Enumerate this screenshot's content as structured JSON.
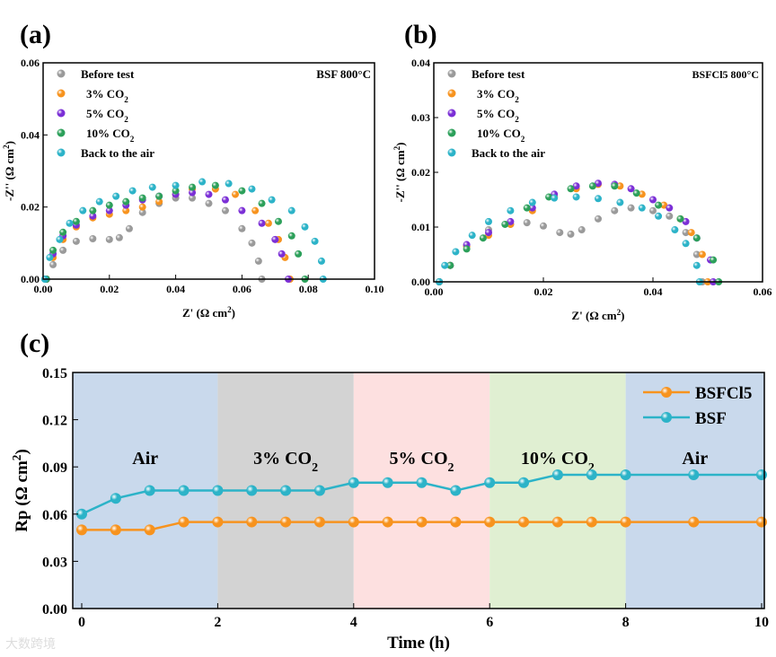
{
  "watermark": "大数跨境",
  "chart_data": [
    {
      "panel": "(a)",
      "type": "scatter",
      "title": "BSF 800°C",
      "xlabel": "Z' (Ω cm²)",
      "ylabel": "-Z'' (Ω cm²)",
      "xlim": [
        0,
        0.1
      ],
      "ylim": [
        0,
        0.06
      ],
      "xticks": [
        "0.00",
        "0.02",
        "0.04",
        "0.06",
        "0.08",
        "0.10"
      ],
      "yticks": [
        "0.00",
        "0.02",
        "0.04",
        "0.06"
      ],
      "legend_position": "top-left",
      "series": [
        {
          "name": "Before test",
          "color": "#9a9a9a",
          "points": [
            [
              0.001,
              0
            ],
            [
              0.003,
              0.004
            ],
            [
              0.006,
              0.008
            ],
            [
              0.01,
              0.0105
            ],
            [
              0.015,
              0.0112
            ],
            [
              0.02,
              0.011
            ],
            [
              0.023,
              0.0115
            ],
            [
              0.026,
              0.014
            ],
            [
              0.03,
              0.0185
            ],
            [
              0.035,
              0.021
            ],
            [
              0.04,
              0.0225
            ],
            [
              0.045,
              0.0225
            ],
            [
              0.05,
              0.021
            ],
            [
              0.055,
              0.019
            ],
            [
              0.06,
              0.014
            ],
            [
              0.063,
              0.01
            ],
            [
              0.065,
              0.005
            ],
            [
              0.066,
              0
            ]
          ]
        },
        {
          "name": "3% CO₂",
          "color": "#f7931e",
          "points": [
            [
              0.001,
              0
            ],
            [
              0.003,
              0.006
            ],
            [
              0.006,
              0.011
            ],
            [
              0.01,
              0.0145
            ],
            [
              0.015,
              0.017
            ],
            [
              0.02,
              0.018
            ],
            [
              0.025,
              0.019
            ],
            [
              0.03,
              0.02
            ],
            [
              0.035,
              0.0215
            ],
            [
              0.04,
              0.0235
            ],
            [
              0.045,
              0.025
            ],
            [
              0.052,
              0.025
            ],
            [
              0.058,
              0.0235
            ],
            [
              0.064,
              0.019
            ],
            [
              0.068,
              0.0155
            ],
            [
              0.071,
              0.011
            ],
            [
              0.073,
              0.006
            ],
            [
              0.0745,
              0
            ]
          ]
        },
        {
          "name": "5% CO₂",
          "color": "#7b2fd6",
          "points": [
            [
              0.001,
              0
            ],
            [
              0.003,
              0.007
            ],
            [
              0.006,
              0.012
            ],
            [
              0.01,
              0.015
            ],
            [
              0.015,
              0.0175
            ],
            [
              0.02,
              0.019
            ],
            [
              0.025,
              0.0205
            ],
            [
              0.03,
              0.022
            ],
            [
              0.035,
              0.023
            ],
            [
              0.04,
              0.0235
            ],
            [
              0.045,
              0.024
            ],
            [
              0.05,
              0.0235
            ],
            [
              0.055,
              0.022
            ],
            [
              0.06,
              0.019
            ],
            [
              0.066,
              0.0155
            ],
            [
              0.07,
              0.011
            ],
            [
              0.072,
              0.007
            ],
            [
              0.074,
              0
            ]
          ]
        },
        {
          "name": "10% CO₂",
          "color": "#2ca05a",
          "points": [
            [
              0.001,
              0
            ],
            [
              0.003,
              0.008
            ],
            [
              0.006,
              0.013
            ],
            [
              0.01,
              0.016
            ],
            [
              0.015,
              0.019
            ],
            [
              0.02,
              0.0205
            ],
            [
              0.025,
              0.0215
            ],
            [
              0.03,
              0.0225
            ],
            [
              0.035,
              0.023
            ],
            [
              0.04,
              0.0245
            ],
            [
              0.045,
              0.0255
            ],
            [
              0.052,
              0.026
            ],
            [
              0.06,
              0.0245
            ],
            [
              0.066,
              0.021
            ],
            [
              0.071,
              0.016
            ],
            [
              0.075,
              0.012
            ],
            [
              0.077,
              0.007
            ],
            [
              0.079,
              0
            ]
          ]
        },
        {
          "name": "Back to the air",
          "color": "#2cb3c8",
          "points": [
            [
              0.0005,
              0
            ],
            [
              0.002,
              0.006
            ],
            [
              0.005,
              0.011
            ],
            [
              0.008,
              0.0155
            ],
            [
              0.012,
              0.019
            ],
            [
              0.017,
              0.0215
            ],
            [
              0.022,
              0.023
            ],
            [
              0.027,
              0.0245
            ],
            [
              0.033,
              0.0255
            ],
            [
              0.04,
              0.026
            ],
            [
              0.048,
              0.027
            ],
            [
              0.056,
              0.0265
            ],
            [
              0.063,
              0.025
            ],
            [
              0.069,
              0.022
            ],
            [
              0.075,
              0.019
            ],
            [
              0.079,
              0.0145
            ],
            [
              0.082,
              0.0105
            ],
            [
              0.084,
              0.005
            ],
            [
              0.0845,
              0
            ]
          ]
        }
      ]
    },
    {
      "panel": "(b)",
      "type": "scatter",
      "title": "BSFCl5 800°C",
      "xlabel": "Z' (Ω cm²)",
      "ylabel": "-Z'' (Ω cm²)",
      "xlim": [
        0,
        0.06
      ],
      "ylim": [
        0,
        0.04
      ],
      "xticks": [
        "0.00",
        "0.02",
        "0.04",
        "0.06"
      ],
      "yticks": [
        "0.00",
        "0.01",
        "0.02",
        "0.03",
        "0.04"
      ],
      "legend_position": "top-left",
      "series": [
        {
          "name": "Before test",
          "color": "#9a9a9a",
          "points": [
            [
              0.001,
              0
            ],
            [
              0.003,
              0.003
            ],
            [
              0.006,
              0.0065
            ],
            [
              0.01,
              0.0095
            ],
            [
              0.014,
              0.0105
            ],
            [
              0.017,
              0.0108
            ],
            [
              0.02,
              0.0102
            ],
            [
              0.023,
              0.009
            ],
            [
              0.025,
              0.0087
            ],
            [
              0.027,
              0.0095
            ],
            [
              0.03,
              0.0115
            ],
            [
              0.033,
              0.013
            ],
            [
              0.036,
              0.0135
            ],
            [
              0.04,
              0.013
            ],
            [
              0.043,
              0.012
            ],
            [
              0.046,
              0.009
            ],
            [
              0.048,
              0.005
            ],
            [
              0.049,
              0
            ]
          ]
        },
        {
          "name": "3% CO₂",
          "color": "#f7931e",
          "points": [
            [
              0.001,
              0
            ],
            [
              0.003,
              0.003
            ],
            [
              0.006,
              0.0065
            ],
            [
              0.01,
              0.0085
            ],
            [
              0.014,
              0.0105
            ],
            [
              0.018,
              0.013
            ],
            [
              0.022,
              0.0155
            ],
            [
              0.026,
              0.017
            ],
            [
              0.03,
              0.0178
            ],
            [
              0.034,
              0.0175
            ],
            [
              0.038,
              0.016
            ],
            [
              0.042,
              0.014
            ],
            [
              0.045,
              0.0115
            ],
            [
              0.047,
              0.009
            ],
            [
              0.049,
              0.005
            ],
            [
              0.05,
              0
            ]
          ]
        },
        {
          "name": "5% CO₂",
          "color": "#7b2fd6",
          "points": [
            [
              0.001,
              0
            ],
            [
              0.003,
              0.003
            ],
            [
              0.006,
              0.0068
            ],
            [
              0.01,
              0.009
            ],
            [
              0.014,
              0.011
            ],
            [
              0.018,
              0.0135
            ],
            [
              0.022,
              0.016
            ],
            [
              0.026,
              0.0175
            ],
            [
              0.03,
              0.018
            ],
            [
              0.033,
              0.0178
            ],
            [
              0.036,
              0.017
            ],
            [
              0.04,
              0.015
            ],
            [
              0.043,
              0.0135
            ],
            [
              0.046,
              0.011
            ],
            [
              0.048,
              0.008
            ],
            [
              0.0505,
              0.004
            ],
            [
              0.051,
              0
            ]
          ]
        },
        {
          "name": "10% CO₂",
          "color": "#2ca05a",
          "points": [
            [
              0.001,
              0
            ],
            [
              0.003,
              0.003
            ],
            [
              0.006,
              0.006
            ],
            [
              0.009,
              0.008
            ],
            [
              0.013,
              0.0105
            ],
            [
              0.017,
              0.0135
            ],
            [
              0.021,
              0.0155
            ],
            [
              0.025,
              0.017
            ],
            [
              0.029,
              0.0175
            ],
            [
              0.033,
              0.0175
            ],
            [
              0.037,
              0.0162
            ],
            [
              0.041,
              0.014
            ],
            [
              0.045,
              0.0115
            ],
            [
              0.048,
              0.008
            ],
            [
              0.051,
              0.004
            ],
            [
              0.052,
              0
            ]
          ]
        },
        {
          "name": "Back to the air",
          "color": "#2cb3c8",
          "points": [
            [
              0.001,
              0
            ],
            [
              0.002,
              0.003
            ],
            [
              0.004,
              0.0055
            ],
            [
              0.007,
              0.0085
            ],
            [
              0.01,
              0.011
            ],
            [
              0.014,
              0.013
            ],
            [
              0.018,
              0.0145
            ],
            [
              0.022,
              0.0153
            ],
            [
              0.026,
              0.0155
            ],
            [
              0.03,
              0.0152
            ],
            [
              0.034,
              0.0145
            ],
            [
              0.038,
              0.0135
            ],
            [
              0.041,
              0.012
            ],
            [
              0.044,
              0.0095
            ],
            [
              0.046,
              0.007
            ],
            [
              0.048,
              0.003
            ],
            [
              0.0485,
              0
            ]
          ]
        }
      ]
    },
    {
      "panel": "(c)",
      "type": "line",
      "xlabel": "Time (h)",
      "ylabel": "Rp (Ω cm²)",
      "xlim": [
        0,
        10
      ],
      "ylim": [
        0,
        0.15
      ],
      "xticks": [
        "0",
        "2",
        "4",
        "6",
        "8",
        "10"
      ],
      "yticks": [
        "0.00",
        "0.03",
        "0.06",
        "0.09",
        "0.12",
        "0.15"
      ],
      "legend_position": "top-right",
      "regions": [
        {
          "label": "Air",
          "from": 0,
          "to": 2,
          "color": "#c9d9ec"
        },
        {
          "label": "3% CO₂",
          "from": 2,
          "to": 4,
          "color": "#d3d3d3"
        },
        {
          "label": "5% CO₂",
          "from": 4,
          "to": 6,
          "color": "#fde0e0"
        },
        {
          "label": "10% CO₂",
          "from": 6,
          "to": 8,
          "color": "#e0efd2"
        },
        {
          "label": "Air",
          "from": 8,
          "to": 10,
          "color": "#c9d9ec"
        }
      ],
      "x": [
        0,
        0.5,
        1,
        1.5,
        2,
        2.5,
        3,
        3.5,
        4,
        4.5,
        5,
        5.5,
        6,
        6.5,
        7,
        7.5,
        8,
        9,
        10
      ],
      "series": [
        {
          "name": "BSFCl5",
          "color": "#f7931e",
          "values": [
            0.05,
            0.05,
            0.05,
            0.055,
            0.055,
            0.055,
            0.055,
            0.055,
            0.055,
            0.055,
            0.055,
            0.055,
            0.055,
            0.055,
            0.055,
            0.055,
            0.055,
            0.055,
            0.055
          ]
        },
        {
          "name": "BSF",
          "color": "#2cb3c8",
          "values": [
            0.06,
            0.07,
            0.075,
            0.075,
            0.075,
            0.075,
            0.075,
            0.075,
            0.08,
            0.08,
            0.08,
            0.075,
            0.08,
            0.08,
            0.085,
            0.085,
            0.085,
            0.085,
            0.085
          ]
        }
      ]
    }
  ]
}
